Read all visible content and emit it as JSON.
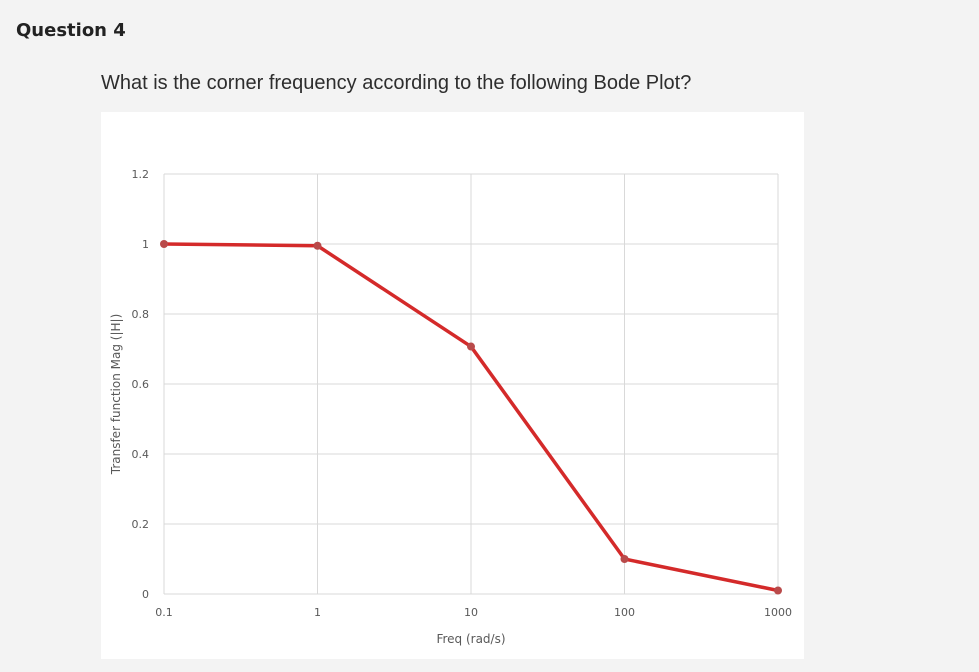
{
  "question": {
    "title": "Question 4",
    "text": "What is the corner frequency according to the following Bode Plot?"
  },
  "chart_data": {
    "type": "line",
    "title": "",
    "xlabel": "Freq (rad/s)",
    "ylabel": "Transfer function Mag (|H|)",
    "x_scale": "log",
    "x_categories": [
      "0.1",
      "1",
      "10",
      "100",
      "1000"
    ],
    "y_ticks": [
      "0",
      "0.2",
      "0.4",
      "0.6",
      "0.8",
      "1",
      "1.2"
    ],
    "ylim": [
      0,
      1.2
    ],
    "grid": true,
    "legend": "none",
    "series": [
      {
        "x": [
          0.1,
          1,
          10,
          100,
          1000
        ],
        "y": [
          1.0,
          0.995,
          0.707,
          0.1,
          0.01
        ],
        "color": "#d42a2a",
        "marker_color": "#b94a4a"
      }
    ]
  }
}
